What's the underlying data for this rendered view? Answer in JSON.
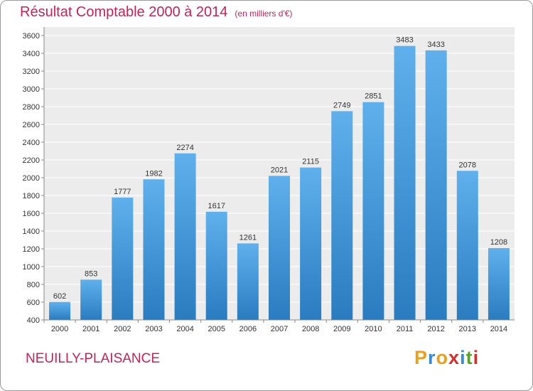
{
  "chart_data": {
    "type": "bar",
    "title": "Résultat Comptable 2000 à 2014",
    "subtitle": "(en milliers d'€)",
    "categories": [
      "2000",
      "2001",
      "2002",
      "2003",
      "2004",
      "2005",
      "2006",
      "2007",
      "2008",
      "2009",
      "2010",
      "2011",
      "2012",
      "2013",
      "2014"
    ],
    "values": [
      602,
      853,
      1777,
      1982,
      2274,
      1617,
      1261,
      2021,
      2115,
      2749,
      2851,
      3483,
      3433,
      2078,
      1208
    ],
    "ylim": [
      400,
      3600
    ],
    "yticks": [
      400,
      600,
      800,
      1000,
      1200,
      1400,
      1600,
      1800,
      2000,
      2200,
      2400,
      2600,
      2800,
      3000,
      3200,
      3400,
      3600
    ],
    "xlabel": "",
    "ylabel": "",
    "grid": true
  },
  "location": "NEUILLY-PLAISANCE",
  "brand": {
    "letters": [
      "P",
      "r",
      "o",
      "x",
      "i",
      "t",
      "i"
    ],
    "colors": [
      "#e8a020",
      "#3a8ad0",
      "#e8a020",
      "#d0312d",
      "#3a8ad0",
      "#5aa02c",
      "#d0312d"
    ]
  },
  "colors": {
    "bar_light": "#5fb0ec",
    "bar_dark": "#2a7cc0",
    "accent": "#c0245a"
  }
}
